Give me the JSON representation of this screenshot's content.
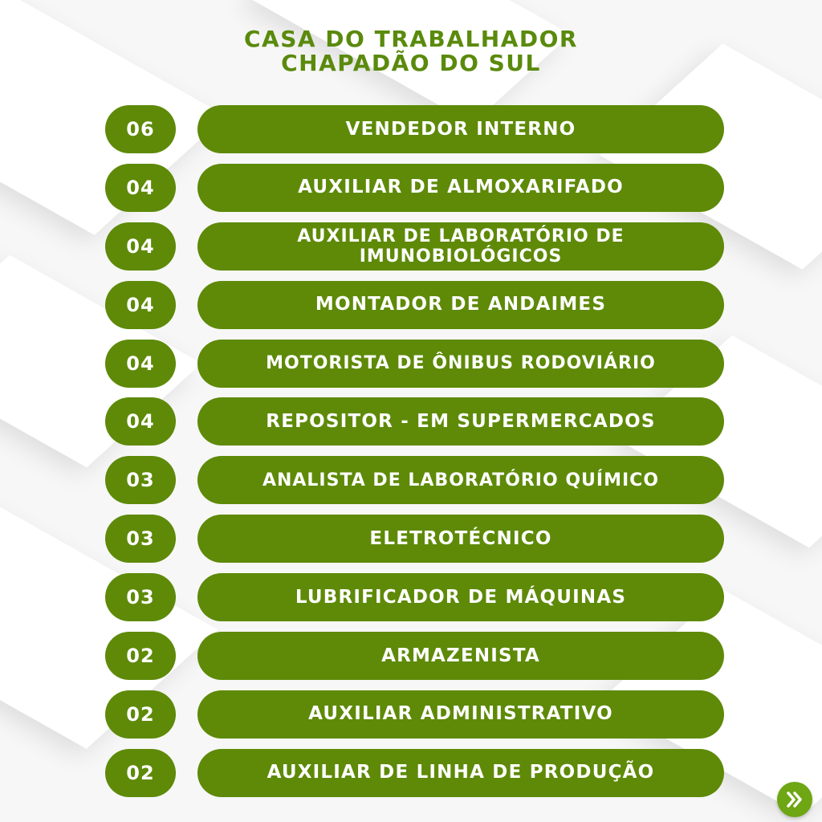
{
  "title": {
    "line1": "CASA DO TRABALHADOR",
    "line2": "CHAPADÃO DO SUL"
  },
  "jobs": [
    {
      "count": "06",
      "label": "VENDEDOR INTERNO"
    },
    {
      "count": "04",
      "label": "AUXILIAR DE ALMOXARIFADO"
    },
    {
      "count": "04",
      "label_line1": "AUXILIAR DE LABORATÓRIO DE",
      "label_line2": "IMUNOBIOLÓGICOS"
    },
    {
      "count": "04",
      "label": "MONTADOR DE ANDAIMES"
    },
    {
      "count": "04",
      "label": "MOTORISTA DE ÔNIBUS RODOVIÁRIO"
    },
    {
      "count": "04",
      "label": "REPOSITOR - EM SUPERMERCADOS"
    },
    {
      "count": "03",
      "label": "ANALISTA DE LABORATÓRIO QUÍMICO"
    },
    {
      "count": "03",
      "label": "ELETROTÉCNICO"
    },
    {
      "count": "03",
      "label": "LUBRIFICADOR DE MÁQUINAS"
    },
    {
      "count": "02",
      "label": "ARMAZENISTA"
    },
    {
      "count": "02",
      "label": "AUXILIAR ADMINISTRATIVO"
    },
    {
      "count": "02",
      "label": "AUXILIAR DE LINHA DE PRODUÇÃO"
    }
  ],
  "next_icon": "double-chevron-right-icon",
  "colors": {
    "pill": "#5e8a08",
    "title": "#5a8a0c",
    "next": "#6ea614"
  }
}
